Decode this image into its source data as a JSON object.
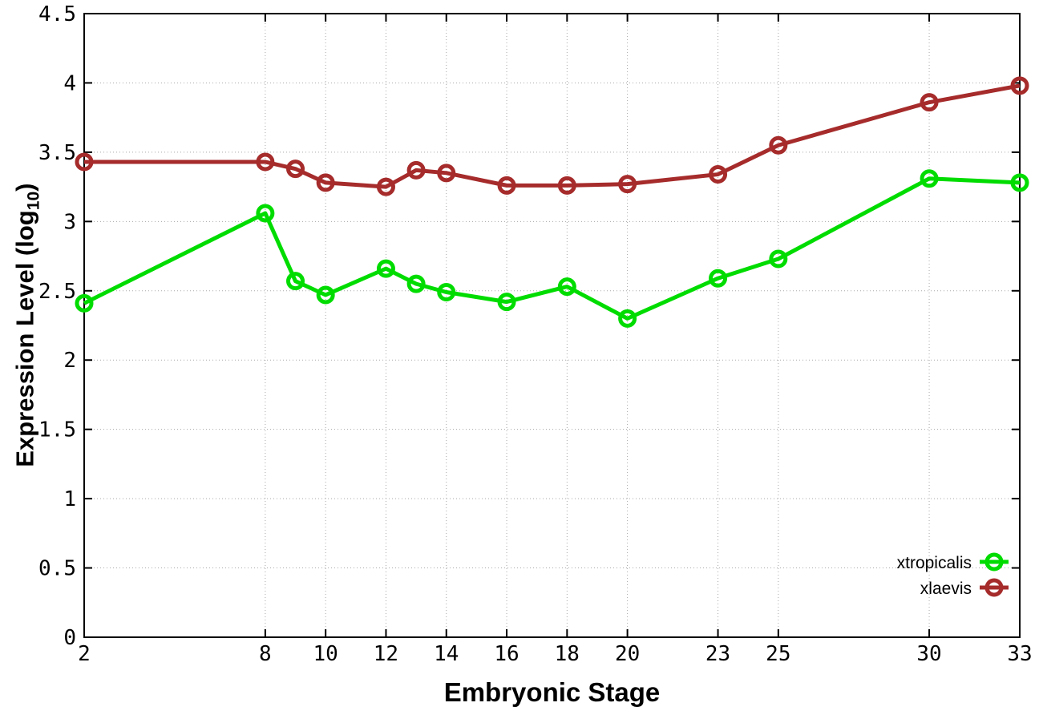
{
  "chart_data": {
    "type": "line",
    "title": "",
    "xlabel": "Embryonic Stage",
    "ylabel": "Expression Level (log10)",
    "ylabel_prefix": "Expression Level (log",
    "ylabel_sub": "10",
    "ylabel_suffix": ")",
    "x": [
      2,
      8,
      9,
      10,
      12,
      13,
      14,
      16,
      18,
      20,
      23,
      25,
      30,
      33
    ],
    "series": [
      {
        "name": "xtropicalis",
        "color": "#00DC00",
        "values": [
          2.41,
          3.06,
          2.57,
          2.47,
          2.66,
          2.55,
          2.49,
          2.42,
          2.53,
          2.3,
          2.59,
          2.73,
          3.31,
          3.28
        ]
      },
      {
        "name": "xlaevis",
        "color": "#A62B2B",
        "values": [
          3.43,
          3.43,
          3.38,
          3.28,
          3.25,
          3.37,
          3.35,
          3.26,
          3.26,
          3.27,
          3.34,
          3.55,
          3.86,
          3.98
        ]
      }
    ],
    "xlim": [
      2,
      33
    ],
    "ylim": [
      0,
      4.5
    ],
    "xticks": [
      2,
      8,
      10,
      12,
      14,
      16,
      18,
      20,
      23,
      25,
      30,
      33
    ],
    "xtick_labels": [
      "2",
      "8",
      "10",
      "12",
      "14",
      "16",
      "18",
      "20",
      "23",
      "25",
      "30",
      "33"
    ],
    "yticks": [
      0,
      0.5,
      1,
      1.5,
      2,
      2.5,
      3,
      3.5,
      4,
      4.5
    ],
    "ytick_labels": [
      "0",
      "0.5",
      "1",
      "1.5",
      "2",
      "2.5",
      "3",
      "3.5",
      "4",
      "4.5"
    ],
    "grid": true,
    "grid_color": "#a8a8a8",
    "axis_color": "#000000",
    "background": "#ffffff",
    "legend_position": "bottom-right",
    "marker": "open-circle"
  }
}
